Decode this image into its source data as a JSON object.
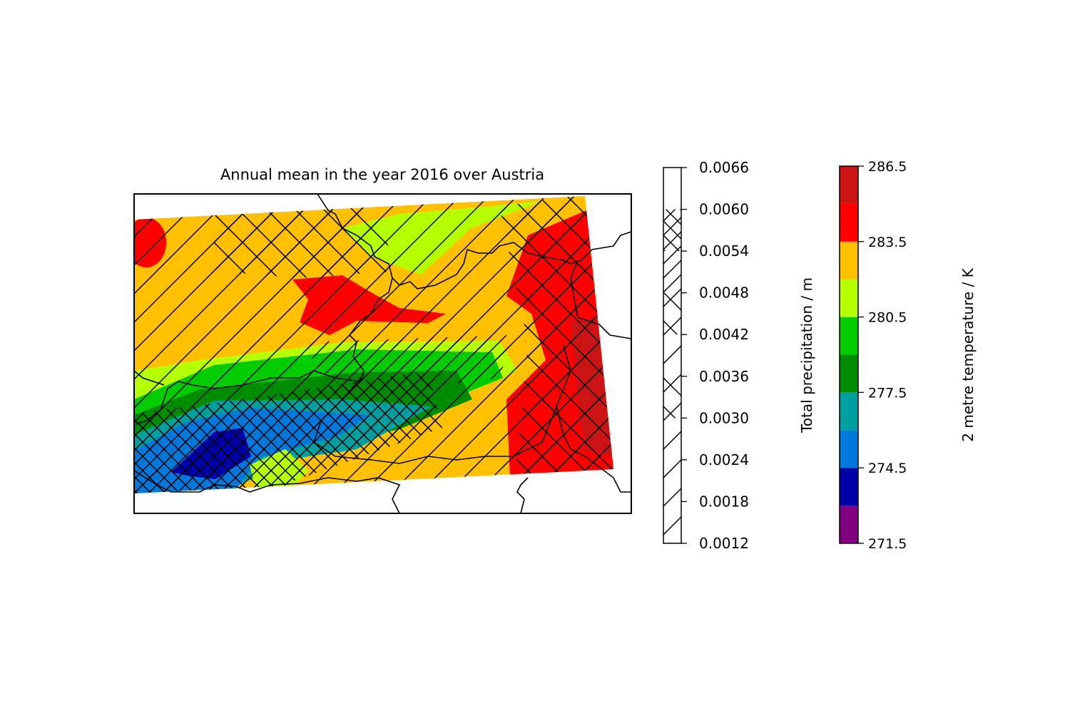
{
  "chart_data": {
    "type": "filled-contour-map",
    "title": "Annual mean in the year 2016 over Austria",
    "precipitation": {
      "label": "Total precipitation / m",
      "ylim": [
        0.0012,
        0.0066
      ],
      "yticks": [
        0.0012,
        0.0018,
        0.0024,
        {
          "value": 0.003,
          "label": "0.0030"
        },
        0.0036,
        0.0042,
        0.0048,
        0.0054,
        {
          "value": 0.006,
          "label": "0.0060"
        },
        0.0066
      ],
      "hatches": [
        "/",
        "/",
        "/",
        "x",
        "/",
        "x",
        "//",
        "xx",
        ""
      ]
    },
    "temperature": {
      "label": "2 metre temperature / K",
      "ylim": [
        271.5,
        286.5
      ],
      "yticks": [
        271.5,
        274.5,
        277.5,
        280.5,
        283.5,
        286.5
      ],
      "colors": [
        "#800080",
        "#0000a8",
        "#0078dc",
        "#00a0a0",
        "#008c00",
        "#00cc00",
        "#b4ff00",
        "#ffc000",
        "#ff0000",
        "#cc1414"
      ]
    }
  }
}
